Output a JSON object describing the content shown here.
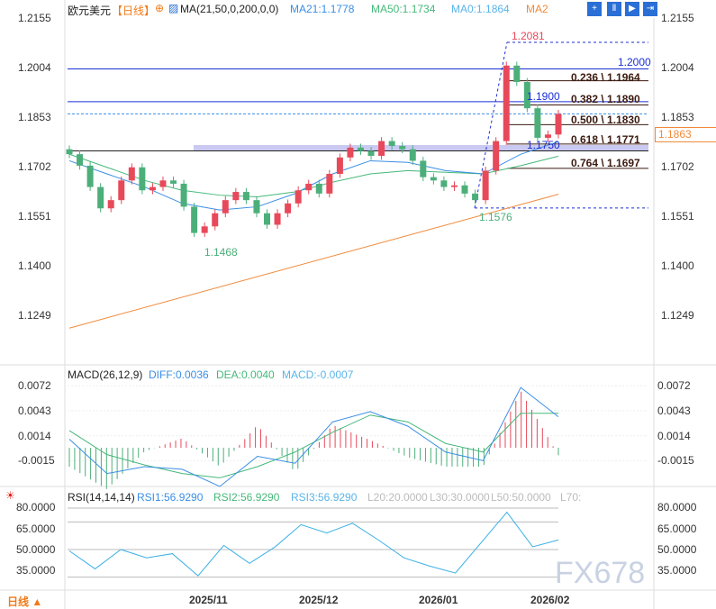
{
  "header": {
    "symbol": "欧元美元",
    "period": "【日线】",
    "ma_label": "MA(21,50,0,200,0,0)",
    "ma21": "MA21:1.1778",
    "ma50": "MA50:1.1734",
    "ma0": "MA0:1.1864",
    "ma2": "MA2"
  },
  "toolbar": [
    "crosshair-icon",
    "range-icon",
    "play-icon",
    "exit-icon"
  ],
  "price_axis": [
    "1.2155",
    "1.2004",
    "1.1853",
    "1.1702",
    "1.1551",
    "1.1400",
    "1.1249"
  ],
  "current_price": "1.1863",
  "annotations": {
    "high": "1.2081",
    "low_recent": "1.1576",
    "low_prev": "1.1468",
    "level_1": "1.2000",
    "level_2": "1.1900",
    "level_3": "1.1750"
  },
  "fib": [
    "0.236 \\ 1.1964",
    "0.382 \\ 1.1890",
    "0.500 \\ 1.1830",
    "0.618 \\ 1.1771",
    "0.764 \\ 1.1697"
  ],
  "macd": {
    "label": "MACD(26,12,9)",
    "diff": "DIFF:0.0036",
    "dea": "DEA:0.0040",
    "macd": "MACD:-0.0007",
    "axis": [
      "0.0072",
      "0.0043",
      "0.0014",
      "-0.0015"
    ]
  },
  "rsi": {
    "label": "RSI(14,14,14)",
    "rsi1": "RSI1:56.9290",
    "rsi2": "RSI2:56.9290",
    "rsi3": "RSI3:56.9290",
    "l20": "L20:20.0000",
    "l30": "L30:30.0000",
    "l50": "L50:50.0000",
    "l70": "L70:",
    "axis": [
      "80.0000",
      "65.0000",
      "50.0000",
      "35.0000"
    ]
  },
  "x_axis": [
    "2025/11",
    "2025/12",
    "2026/01",
    "2026/02"
  ],
  "period_button": "日线 ▲",
  "watermark": "FX678",
  "colors": {
    "up": "#e8495a",
    "down": "#4caf7a",
    "ma21": "#3a8ee6",
    "ma50": "#45b87a",
    "ma200": "#f08a3a",
    "fib": "#3b1a10",
    "level": "#1a2fd6"
  },
  "chart_data": {
    "type": "candlestick",
    "close": [
      1.174,
      1.1705,
      1.164,
      1.1575,
      1.16,
      1.166,
      1.17,
      1.163,
      1.164,
      1.166,
      1.165,
      1.158,
      1.15,
      1.152,
      1.156,
      1.16,
      1.1625,
      1.16,
      1.156,
      1.1525,
      1.156,
      1.159,
      1.163,
      1.165,
      1.162,
      1.168,
      1.173,
      1.176,
      1.175,
      1.1735,
      1.178,
      1.1765,
      1.1755,
      1.172,
      1.167,
      1.166,
      1.164,
      1.1645,
      1.162,
      1.16,
      1.169,
      1.178,
      1.201,
      1.196,
      1.188,
      1.179,
      1.18,
      1.1863
    ],
    "ma21": [
      1.172,
      1.168,
      1.164,
      1.159,
      1.157,
      1.158,
      1.162,
      1.168,
      1.172,
      1.1715,
      1.169,
      1.168,
      1.174,
      1.1778
    ],
    "ma50": [
      1.174,
      1.17,
      1.166,
      1.163,
      1.1615,
      1.161,
      1.1625,
      1.1655,
      1.168,
      1.169,
      1.1685,
      1.168,
      1.1705,
      1.1734
    ],
    "ma200": [
      1.121,
      1.1618
    ],
    "macd_diff": [
      0.001,
      -0.003,
      -0.0022,
      -0.0025,
      -0.0045,
      -0.001,
      -0.0018,
      0.003,
      0.0042,
      0.0025,
      -0.0005,
      -0.0015,
      0.007,
      0.0036
    ],
    "macd_dea": [
      0.002,
      -0.0008,
      -0.002,
      -0.003,
      -0.0035,
      -0.0022,
      -0.0005,
      0.0018,
      0.0038,
      0.003,
      0.0005,
      -0.0005,
      0.004,
      0.004
    ],
    "rsi": [
      49,
      36,
      50,
      44,
      47,
      31,
      53,
      40,
      52,
      68,
      62,
      69,
      57,
      44,
      38,
      33,
      55,
      77,
      52,
      56.9
    ],
    "ylim": [
      1.12,
      1.2155
    ],
    "x_ticks": [
      "2025/11",
      "2025/12",
      "2026/01",
      "2026/02"
    ]
  }
}
